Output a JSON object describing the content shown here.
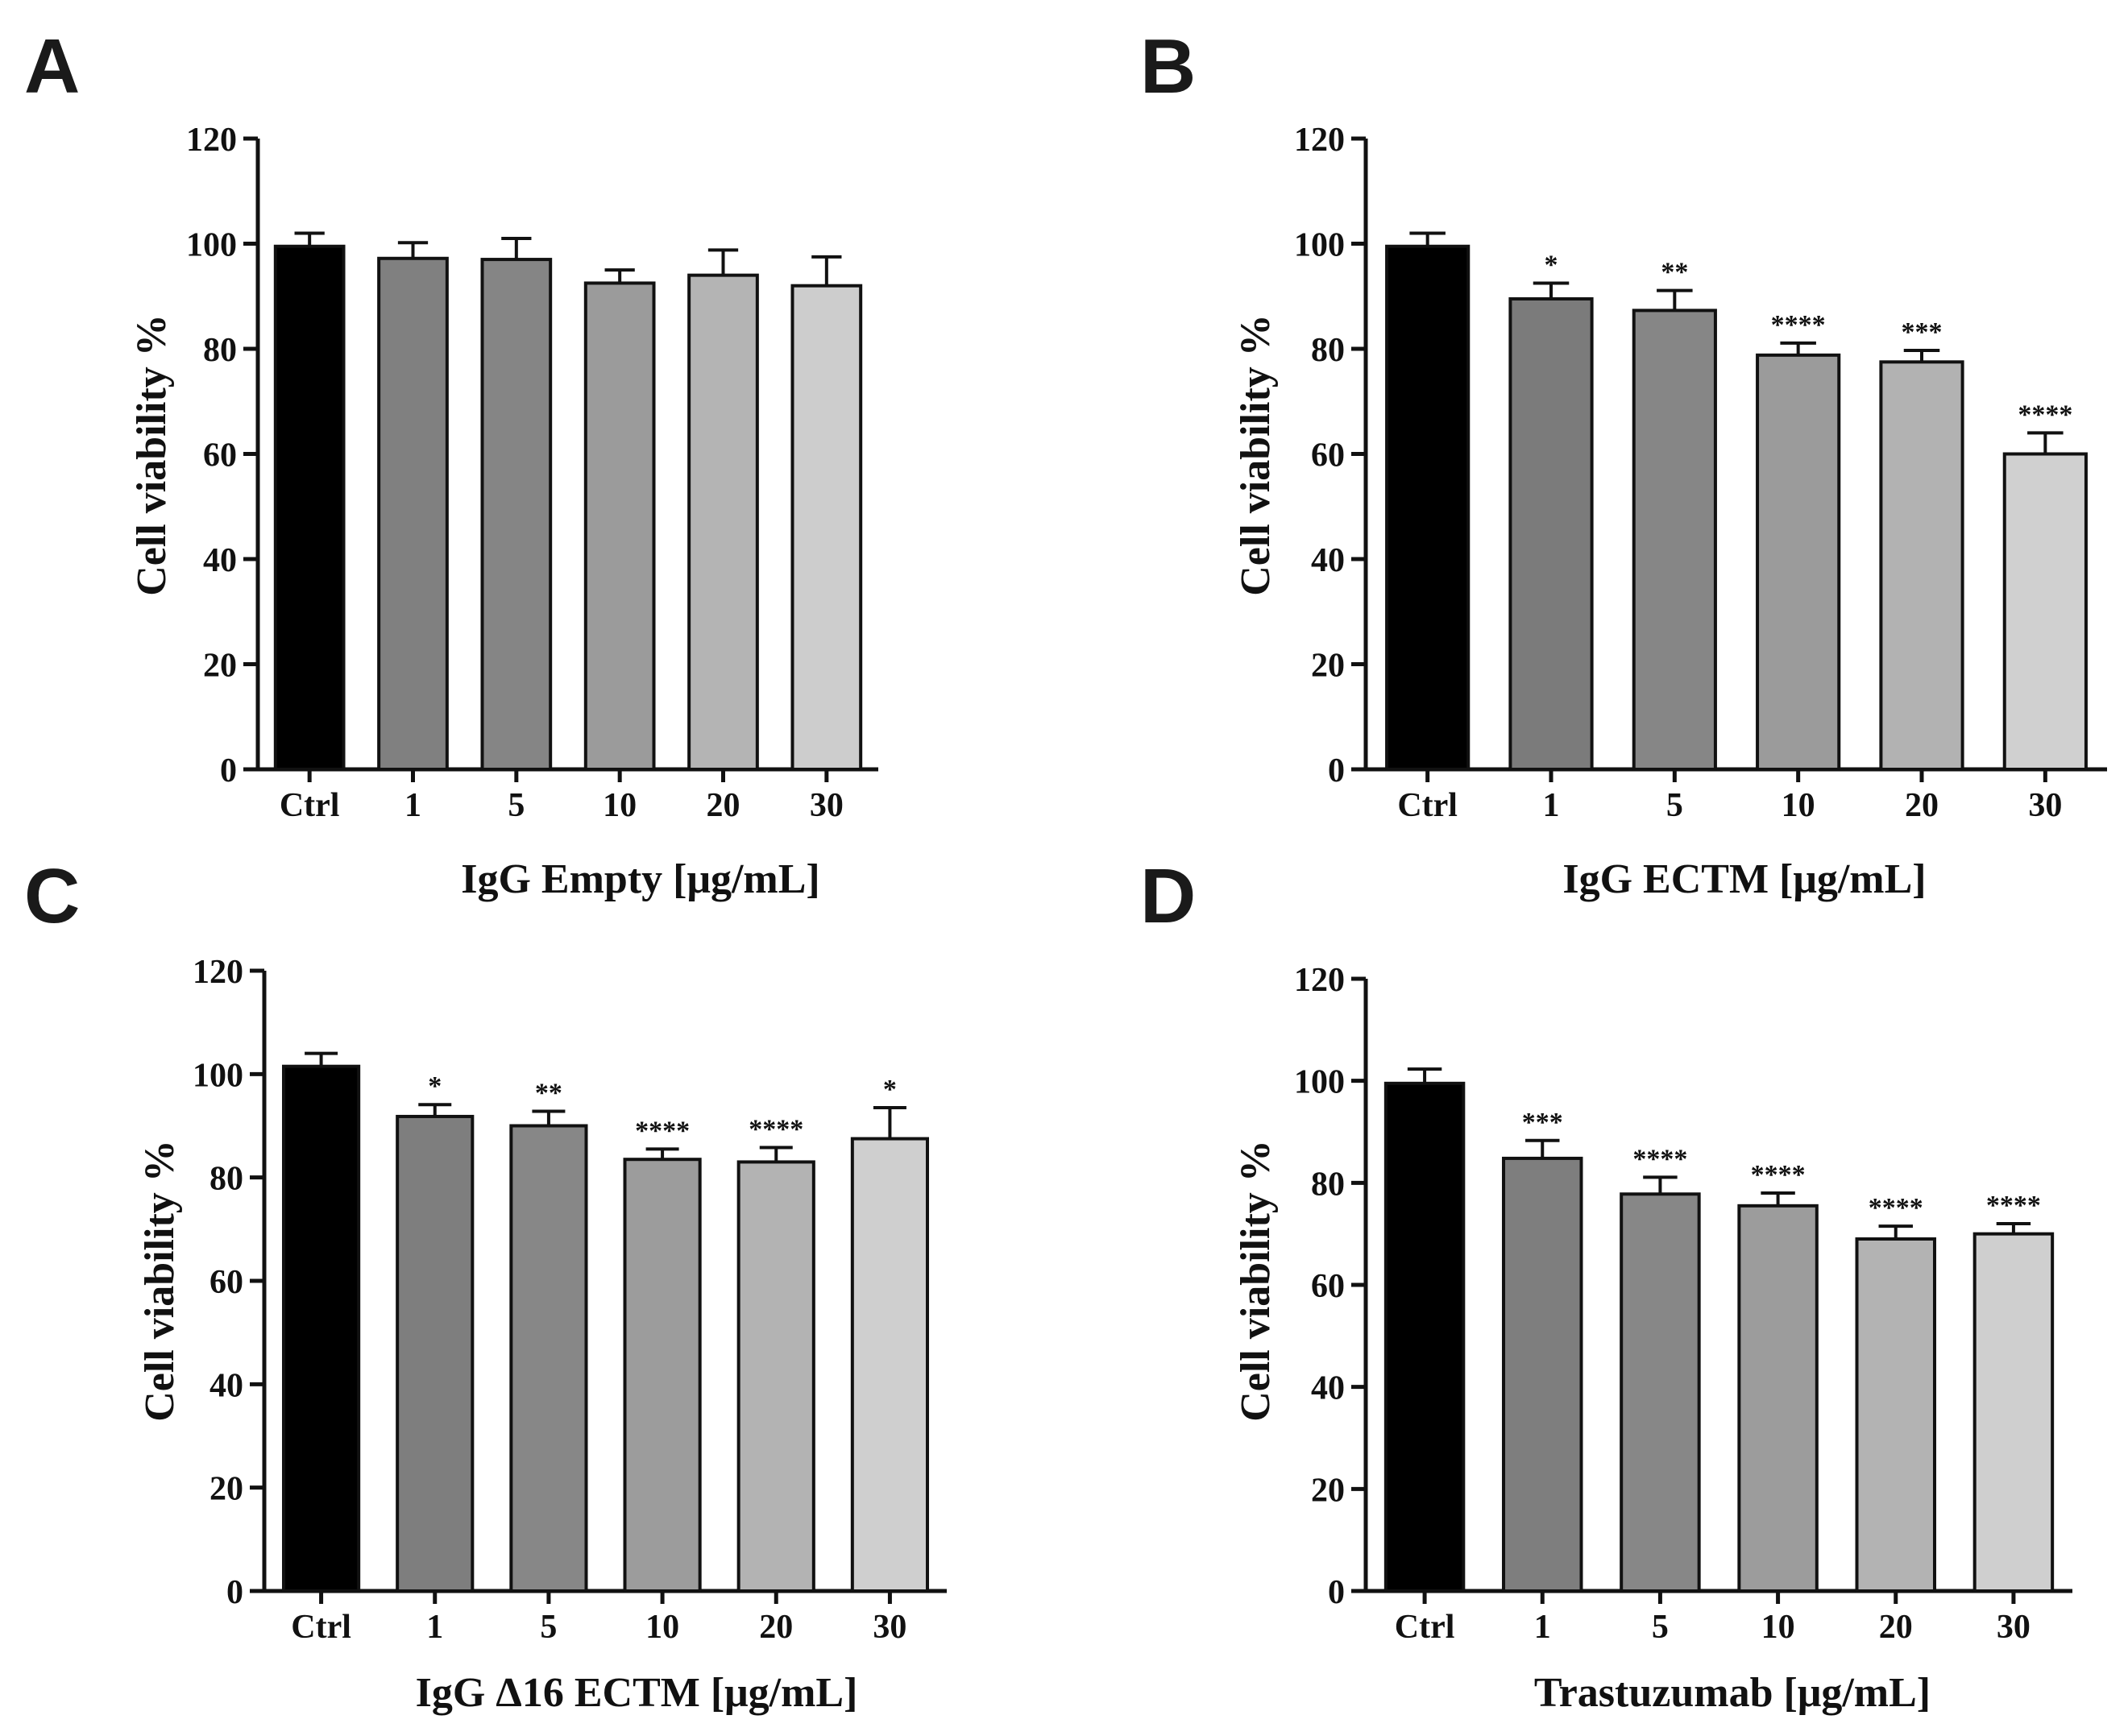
{
  "chart_data": [
    {
      "panel": "A",
      "type": "bar",
      "xlabel": "IgG Empty [μg/mL]",
      "ylabel": "Cell viability %",
      "ylim": [
        0,
        120
      ],
      "yticks": [
        "0",
        "20",
        "40",
        "60",
        "80",
        "100",
        "120"
      ],
      "categories": [
        "Ctrl",
        "1",
        "5",
        "10",
        "20",
        "30"
      ],
      "values": [
        99.5,
        97.2,
        97.0,
        92.5,
        94.0,
        92.0
      ],
      "errors": [
        2.5,
        3.0,
        4.0,
        2.5,
        4.8,
        5.5
      ],
      "significance": [
        "",
        "",
        "",
        "",
        "",
        ""
      ],
      "colors": [
        "#000000",
        "#808080",
        "#858585",
        "#9b9b9b",
        "#b4b4b4",
        "#cdcdcd"
      ]
    },
    {
      "panel": "B",
      "type": "bar",
      "xlabel": "IgG ECTM [μg/mL]",
      "ylabel": "Cell viability %",
      "ylim": [
        0,
        120
      ],
      "yticks": [
        "0",
        "20",
        "40",
        "60",
        "80",
        "100",
        "120"
      ],
      "categories": [
        "Ctrl",
        "1",
        "5",
        "10",
        "20",
        "30"
      ],
      "values": [
        99.5,
        89.5,
        87.3,
        78.8,
        77.5,
        60.0
      ],
      "errors": [
        2.5,
        3.0,
        3.8,
        2.3,
        2.2,
        4.0
      ],
      "significance": [
        "",
        "*",
        "**",
        "****",
        "***",
        "****"
      ],
      "colors": [
        "#000000",
        "#7b7b7b",
        "#868686",
        "#9b9b9b",
        "#b2b2b2",
        "#d0d0d0"
      ]
    },
    {
      "panel": "C",
      "type": "bar",
      "xlabel": "IgG Δ16 ECTM [μg/mL]",
      "ylabel": "Cell viability %",
      "ylim": [
        0,
        120
      ],
      "yticks": [
        "0",
        "20",
        "40",
        "60",
        "80",
        "100",
        "120"
      ],
      "categories": [
        "Ctrl",
        "1",
        "5",
        "10",
        "20",
        "30"
      ],
      "values": [
        101.5,
        91.8,
        90.0,
        83.5,
        83.0,
        87.5
      ],
      "errors": [
        2.5,
        2.3,
        2.8,
        2.0,
        2.8,
        6.0
      ],
      "significance": [
        "",
        "*",
        "**",
        "****",
        "****",
        "*"
      ],
      "colors": [
        "#000000",
        "#7e7e7e",
        "#878787",
        "#9c9c9c",
        "#b3b3b3",
        "#cfcfcf"
      ]
    },
    {
      "panel": "D",
      "type": "bar",
      "xlabel": "Trastuzumab [μg/mL]",
      "ylabel": "Cell viability %",
      "ylim": [
        0,
        120
      ],
      "yticks": [
        "0",
        "20",
        "40",
        "60",
        "80",
        "100",
        "120"
      ],
      "categories": [
        "Ctrl",
        "1",
        "5",
        "10",
        "20",
        "30"
      ],
      "values": [
        99.5,
        84.8,
        77.8,
        75.5,
        69.0,
        70.0
      ],
      "errors": [
        2.8,
        3.5,
        3.3,
        2.5,
        2.5,
        2.0
      ],
      "significance": [
        "",
        "***",
        "****",
        "****",
        "****",
        "****"
      ],
      "colors": [
        "#000000",
        "#7e7e7e",
        "#878787",
        "#9c9c9c",
        "#b3b3b3",
        "#cfcfcf"
      ]
    }
  ]
}
